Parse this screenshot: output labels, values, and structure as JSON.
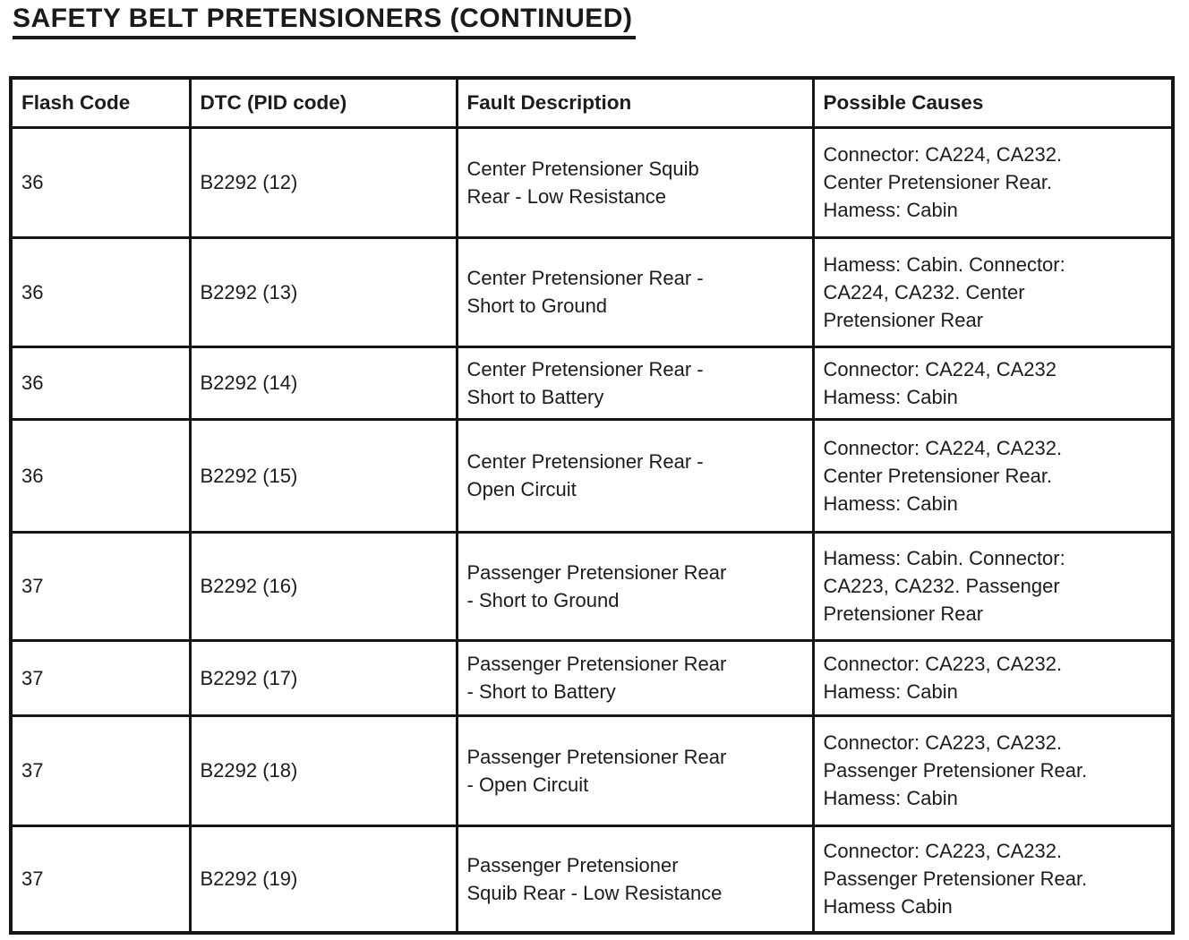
{
  "page": {
    "title": "SAFETY BELT PRETENSIONERS (CONTINUED)"
  },
  "table": {
    "columns": [
      "Flash Code",
      "DTC (PID code)",
      "Fault Description",
      "Possible Causes"
    ],
    "rows": [
      {
        "flash_code": "36",
        "dtc": "B2292 (12)",
        "fault": "Center Pretensioner Squib\nRear - Low Resistance",
        "causes": "Connector: CA224, CA232.\nCenter Pretensioner Rear.\nHamess: Cabin"
      },
      {
        "flash_code": "36",
        "dtc": "B2292 (13)",
        "fault": "Center Pretensioner Rear -\nShort to Ground",
        "causes": "Hamess: Cabin. Connector:\nCA224, CA232. Center\nPretensioner Rear"
      },
      {
        "flash_code": "36",
        "dtc": "B2292 (14)",
        "fault": "Center Pretensioner Rear -\nShort to Battery",
        "causes": "Connector: CA224, CA232\nHamess: Cabin"
      },
      {
        "flash_code": "36",
        "dtc": "B2292 (15)",
        "fault": "Center Pretensioner Rear -\nOpen Circuit",
        "causes": "Connector: CA224, CA232.\nCenter Pretensioner Rear.\nHamess: Cabin"
      },
      {
        "flash_code": "37",
        "dtc": "B2292 (16)",
        "fault": "Passenger Pretensioner Rear\n- Short to Ground",
        "causes": "Hamess: Cabin. Connector:\nCA223, CA232. Passenger\nPretensioner Rear"
      },
      {
        "flash_code": "37",
        "dtc": "B2292 (17)",
        "fault": "Passenger Pretensioner Rear\n- Short to Battery",
        "causes": "Connector: CA223, CA232.\nHamess: Cabin"
      },
      {
        "flash_code": "37",
        "dtc": "B2292 (18)",
        "fault": "Passenger Pretensioner Rear\n- Open Circuit",
        "causes": "Connector: CA223, CA232.\nPassenger Pretensioner Rear.\nHamess: Cabin"
      },
      {
        "flash_code": "37",
        "dtc": "B2292 (19)",
        "fault": "Passenger Pretensioner\nSquib Rear - Low Resistance",
        "causes": "Connector: CA223, CA232.\nPassenger Pretensioner Rear.\nHamess Cabin"
      }
    ]
  }
}
